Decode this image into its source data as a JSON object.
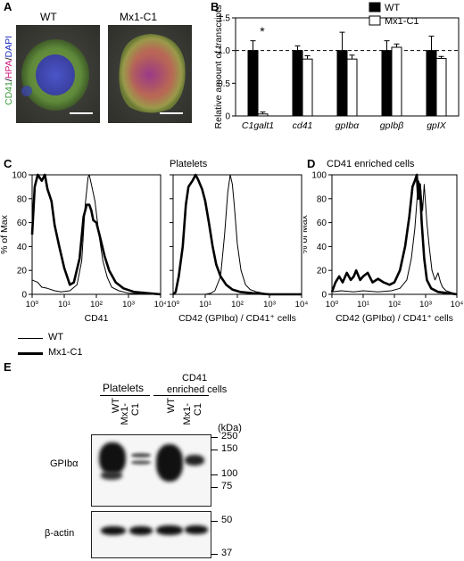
{
  "panels": {
    "A": {
      "label": "A",
      "images": [
        {
          "title": "WT"
        },
        {
          "title": "Mx1-C1"
        }
      ],
      "stain_label": {
        "cd41": "CD41",
        "hpa": "HPA",
        "dapi": "DAPI",
        "sep": "/"
      }
    },
    "B": {
      "label": "B"
    },
    "C": {
      "label": "C",
      "top_title": "Platelets",
      "legend": {
        "wt": "WT",
        "mx1": "Mx1-C1"
      }
    },
    "D": {
      "label": "D",
      "top_title": "CD41 enriched cells"
    },
    "E": {
      "label": "E",
      "group_platelets": "Platelets",
      "group_cd41_line1": "CD41",
      "group_cd41_line2": "enriched cells",
      "lanes": [
        "WT",
        "Mx1-C1",
        "WT",
        "Mx1-C1"
      ],
      "kda_label": "(kDa)",
      "markers_top": [
        "250",
        "150",
        "100",
        "75"
      ],
      "markers_bottom": [
        "50",
        "37"
      ],
      "row_labels": [
        "GPIbα",
        "β-actin"
      ]
    }
  },
  "chart_data": [
    {
      "type": "bar",
      "panel": "B",
      "categories": [
        "C1galt1",
        "cd41",
        "gpIbα",
        "gpIbβ",
        "gpIX"
      ],
      "series": [
        {
          "name": "WT",
          "values": [
            1.0,
            1.0,
            1.0,
            1.0,
            1.0
          ],
          "errors": [
            0.15,
            0.07,
            0.28,
            0.15,
            0.22
          ],
          "color": "#000000"
        },
        {
          "name": "Mx1-C1",
          "values": [
            0.03,
            0.87,
            0.87,
            1.05,
            0.88
          ],
          "errors": [
            0.03,
            0.05,
            0.06,
            0.05,
            0.03
          ],
          "color": "#ffffff"
        }
      ],
      "ylabel": "Relative amount of transcripts",
      "yticks": [
        "0",
        "0.5",
        "1.0",
        "1.5"
      ],
      "ylim": [
        0,
        1.5
      ],
      "reference_line": 1.0,
      "annotation": "*"
    },
    {
      "type": "line",
      "panel": "C-left",
      "xlabel": "CD41",
      "ylabel": "% of Max",
      "xscale": "log",
      "xlim": [
        1,
        10000
      ],
      "ylim": [
        0,
        100
      ],
      "xticks": [
        "10⁰",
        "10¹",
        "10²",
        "10³",
        "10⁴"
      ],
      "yticks": [
        "0",
        "20",
        "40",
        "60",
        "80",
        "100"
      ],
      "series": [
        {
          "name": "WT",
          "x": [
            1,
            1.5,
            2,
            3,
            5,
            8,
            15,
            25,
            35,
            45,
            55,
            60,
            70,
            90,
            120,
            160,
            220,
            300,
            500,
            1000,
            3000,
            10000
          ],
          "y": [
            12,
            10,
            6,
            5,
            3,
            2,
            3,
            8,
            28,
            75,
            98,
            100,
            92,
            78,
            50,
            28,
            14,
            6,
            3,
            1,
            0,
            0
          ]
        },
        {
          "name": "Mx1-C1",
          "x": [
            1,
            1.2,
            1.5,
            2,
            2.5,
            3,
            4,
            5,
            7,
            10,
            15,
            20,
            30,
            40,
            50,
            60,
            70,
            80,
            100,
            130,
            180,
            250,
            400,
            700,
            1500,
            10000
          ],
          "y": [
            50,
            90,
            100,
            95,
            100,
            88,
            78,
            58,
            40,
            22,
            8,
            10,
            30,
            65,
            75,
            75,
            70,
            62,
            60,
            48,
            32,
            20,
            10,
            5,
            2,
            0
          ]
        }
      ]
    },
    {
      "type": "line",
      "panel": "C-right",
      "xlabel": "CD42 (GPIbα) / CD41⁺ cells",
      "xscale": "log",
      "xlim": [
        1,
        10000
      ],
      "ylim": [
        0,
        100
      ],
      "xticks": [
        "10⁰",
        "10¹",
        "10²",
        "10³",
        "10⁴"
      ],
      "yticks": [
        "0",
        "20",
        "40",
        "60",
        "80",
        "100"
      ],
      "series": [
        {
          "name": "WT",
          "x": [
            1,
            5,
            10,
            15,
            20,
            30,
            40,
            50,
            60,
            70,
            80,
            100,
            130,
            180,
            250,
            400,
            1000,
            10000
          ],
          "y": [
            0,
            0,
            0,
            1,
            3,
            15,
            50,
            85,
            100,
            92,
            75,
            42,
            20,
            8,
            4,
            2,
            0,
            0
          ]
        },
        {
          "name": "Mx1-C1",
          "x": [
            1,
            1.2,
            1.5,
            2,
            2.5,
            3,
            4,
            5,
            6,
            8,
            10,
            13,
            17,
            22,
            30,
            45,
            70,
            120,
            300,
            1000,
            10000
          ],
          "y": [
            0,
            2,
            15,
            40,
            75,
            90,
            95,
            100,
            96,
            88,
            78,
            60,
            40,
            25,
            15,
            8,
            4,
            2,
            1,
            0,
            0
          ]
        }
      ]
    },
    {
      "type": "line",
      "panel": "D",
      "xlabel": "CD42 (GPIbα) / CD41⁺ cells",
      "ylabel": "% of Max",
      "xscale": "log",
      "xlim": [
        1,
        10000
      ],
      "ylim": [
        0,
        100
      ],
      "xticks": [
        "10⁰",
        "10¹",
        "10²",
        "10³",
        "10⁴"
      ],
      "yticks": [
        "0",
        "20",
        "40",
        "60",
        "80",
        "100"
      ],
      "series": [
        {
          "name": "WT",
          "x": [
            1,
            2,
            5,
            10,
            30,
            80,
            150,
            250,
            350,
            450,
            550,
            600,
            700,
            800,
            900,
            1100,
            1300,
            1600,
            2000,
            2500,
            3000,
            3500,
            4500,
            10000
          ],
          "y": [
            2,
            3,
            2,
            3,
            2,
            3,
            5,
            12,
            30,
            55,
            85,
            95,
            88,
            70,
            92,
            60,
            40,
            20,
            12,
            18,
            10,
            6,
            3,
            0
          ]
        },
        {
          "name": "Mx1-C1",
          "x": [
            1,
            1.3,
            1.7,
            2.2,
            3,
            4,
            5,
            6,
            8,
            10,
            14,
            20,
            30,
            45,
            70,
            100,
            150,
            220,
            300,
            380,
            450,
            520,
            580,
            650,
            750,
            900,
            1100,
            1500,
            2500,
            10000
          ],
          "y": [
            2,
            10,
            15,
            10,
            18,
            12,
            15,
            20,
            12,
            15,
            18,
            10,
            13,
            10,
            8,
            10,
            20,
            40,
            65,
            90,
            95,
            100,
            80,
            92,
            60,
            30,
            12,
            5,
            2,
            0
          ]
        }
      ]
    }
  ]
}
